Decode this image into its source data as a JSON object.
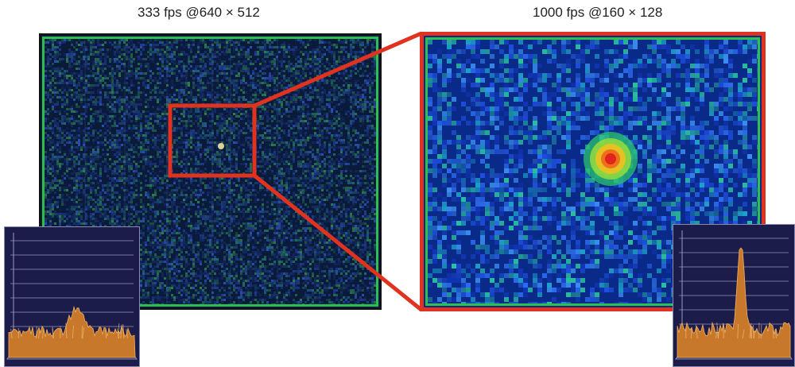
{
  "captions": {
    "left": "333 fps @640 × 512",
    "right": "1000 fps @160 × 128"
  },
  "colors": {
    "zoom_box": "#e0321e",
    "frame_green": "#2fbf4f",
    "left_background": "#0a1a3a",
    "right_background": "#0a2a8a",
    "profile_orange": "#c8782a",
    "inset_background": "#1c1c4a"
  },
  "icons": {
    "left_inset": "3d-intensity-profile-low-peak",
    "right_inset": "3d-intensity-profile-high-peak"
  }
}
